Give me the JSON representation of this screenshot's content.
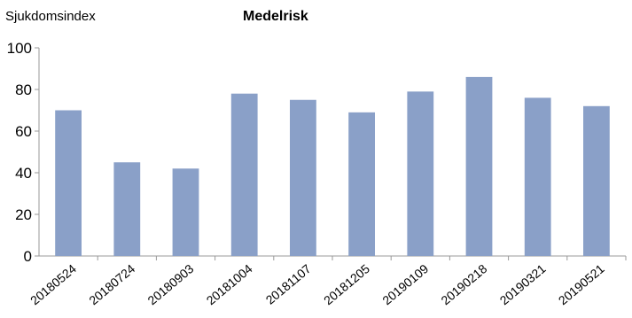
{
  "chart_data": {
    "type": "bar",
    "title": "Medelrisk",
    "ylabel": "Sjukdomsindex",
    "xlabel": "",
    "categories": [
      "20180524",
      "20180724",
      "20180903",
      "20181004",
      "20181107",
      "20181205",
      "20190109",
      "20190218",
      "20190321",
      "20190521"
    ],
    "values": [
      70,
      45,
      42,
      78,
      75,
      69,
      79,
      86,
      76,
      72
    ],
    "ylim": [
      0,
      100
    ],
    "yticks": [
      0,
      20,
      40,
      60,
      80,
      100
    ],
    "grid": false,
    "legend": "none",
    "bar_color": "#8aa0c8"
  }
}
